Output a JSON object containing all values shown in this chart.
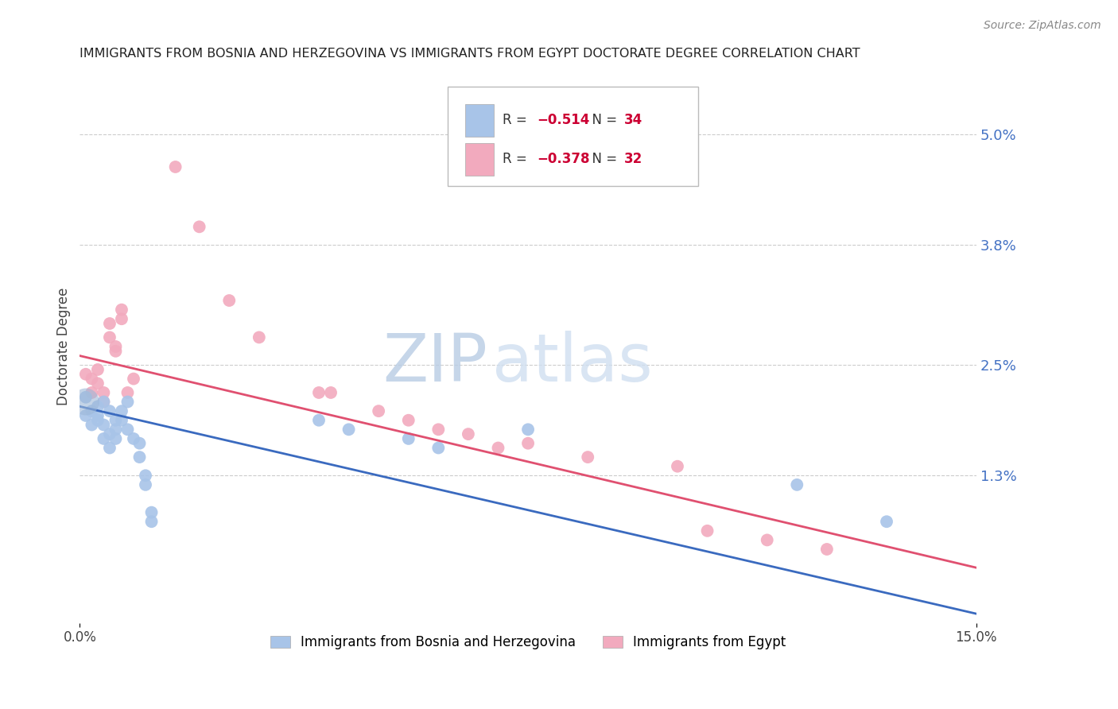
{
  "title": "IMMIGRANTS FROM BOSNIA AND HERZEGOVINA VS IMMIGRANTS FROM EGYPT DOCTORATE DEGREE CORRELATION CHART",
  "source": "Source: ZipAtlas.com",
  "ylabel": "Doctorate Degree",
  "y_tick_labels": [
    "5.0%",
    "3.8%",
    "2.5%",
    "1.3%"
  ],
  "y_tick_values": [
    0.05,
    0.038,
    0.025,
    0.013
  ],
  "xlim": [
    0.0,
    0.15
  ],
  "ylim": [
    -0.003,
    0.057
  ],
  "legend_r1": "R = −0.514",
  "legend_n1": "N = 34",
  "legend_r2": "R = −0.378",
  "legend_n2": "N = 32",
  "series_blue": {
    "name": "Immigrants from Bosnia and Herzegovina",
    "color": "#a8c4e8",
    "line_color": "#3a6abf",
    "points": [
      [
        0.001,
        0.0215
      ],
      [
        0.001,
        0.0195
      ],
      [
        0.002,
        0.02
      ],
      [
        0.002,
        0.0185
      ],
      [
        0.003,
        0.0205
      ],
      [
        0.003,
        0.0195
      ],
      [
        0.003,
        0.019
      ],
      [
        0.004,
        0.021
      ],
      [
        0.004,
        0.0185
      ],
      [
        0.004,
        0.017
      ],
      [
        0.005,
        0.02
      ],
      [
        0.005,
        0.0175
      ],
      [
        0.005,
        0.016
      ],
      [
        0.006,
        0.019
      ],
      [
        0.006,
        0.018
      ],
      [
        0.006,
        0.017
      ],
      [
        0.007,
        0.02
      ],
      [
        0.007,
        0.019
      ],
      [
        0.008,
        0.021
      ],
      [
        0.008,
        0.018
      ],
      [
        0.009,
        0.017
      ],
      [
        0.01,
        0.0165
      ],
      [
        0.01,
        0.015
      ],
      [
        0.011,
        0.013
      ],
      [
        0.011,
        0.012
      ],
      [
        0.012,
        0.009
      ],
      [
        0.012,
        0.008
      ],
      [
        0.04,
        0.019
      ],
      [
        0.045,
        0.018
      ],
      [
        0.055,
        0.017
      ],
      [
        0.06,
        0.016
      ],
      [
        0.075,
        0.018
      ],
      [
        0.12,
        0.012
      ],
      [
        0.135,
        0.008
      ]
    ],
    "trendline": {
      "x0": 0.0,
      "y0": 0.0205,
      "x1": 0.15,
      "y1": -0.002
    }
  },
  "series_pink": {
    "name": "Immigrants from Egypt",
    "color": "#f2aabe",
    "line_color": "#e05070",
    "points": [
      [
        0.001,
        0.024
      ],
      [
        0.002,
        0.0235
      ],
      [
        0.002,
        0.022
      ],
      [
        0.003,
        0.0245
      ],
      [
        0.003,
        0.023
      ],
      [
        0.004,
        0.022
      ],
      [
        0.004,
        0.021
      ],
      [
        0.005,
        0.0295
      ],
      [
        0.005,
        0.028
      ],
      [
        0.006,
        0.027
      ],
      [
        0.006,
        0.0265
      ],
      [
        0.007,
        0.031
      ],
      [
        0.007,
        0.03
      ],
      [
        0.008,
        0.022
      ],
      [
        0.009,
        0.0235
      ],
      [
        0.016,
        0.0465
      ],
      [
        0.02,
        0.04
      ],
      [
        0.025,
        0.032
      ],
      [
        0.03,
        0.028
      ],
      [
        0.04,
        0.022
      ],
      [
        0.042,
        0.022
      ],
      [
        0.05,
        0.02
      ],
      [
        0.055,
        0.019
      ],
      [
        0.06,
        0.018
      ],
      [
        0.065,
        0.0175
      ],
      [
        0.07,
        0.016
      ],
      [
        0.075,
        0.0165
      ],
      [
        0.085,
        0.015
      ],
      [
        0.1,
        0.014
      ],
      [
        0.105,
        0.007
      ],
      [
        0.115,
        0.006
      ],
      [
        0.125,
        0.005
      ]
    ],
    "trendline": {
      "x0": 0.0,
      "y0": 0.026,
      "x1": 0.15,
      "y1": 0.003
    }
  },
  "big_blue_point": [
    0.001,
    0.021
  ],
  "watermark_zip": "ZIP",
  "watermark_atlas": "atlas",
  "background_color": "#ffffff",
  "grid_color": "#cccccc",
  "title_color": "#222222",
  "axis_label_color": "#4472c4",
  "marker_size": 130,
  "marker_size_big": 600
}
